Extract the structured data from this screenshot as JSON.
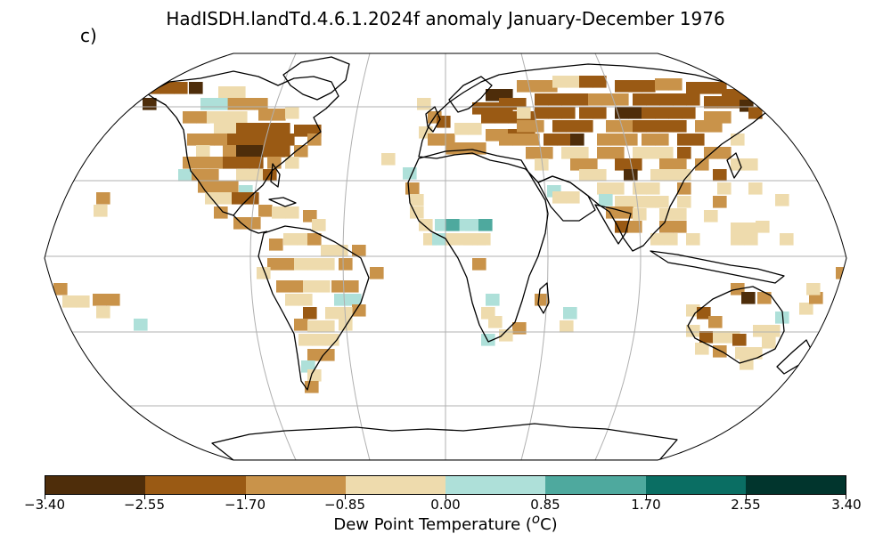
{
  "title": "HadISDH.landTd.4.6.1.2024f anomaly January-December 1976",
  "panel_label": "c)",
  "colorbar": {
    "label_prefix": "Dew Point Temperature (",
    "label_unit": "o",
    "label_suffix": "C)",
    "ticks": [
      "−3.40",
      "−2.55",
      "−1.70",
      "−0.85",
      "0.00",
      "0.85",
      "1.70",
      "2.55",
      "3.40"
    ],
    "colors": [
      "#543005",
      "#8c510a",
      "#bf812d",
      "#dfc27d",
      "#c7eae5",
      "#80cdc1",
      "#35978f",
      "#01665e"
    ],
    "display_colors": [
      "#4e2d0a",
      "#9a5a14",
      "#c9934a",
      "#eedbad",
      "#aee0d9",
      "#4ea99e",
      "#0a6e63",
      "#01352d"
    ]
  }
}
